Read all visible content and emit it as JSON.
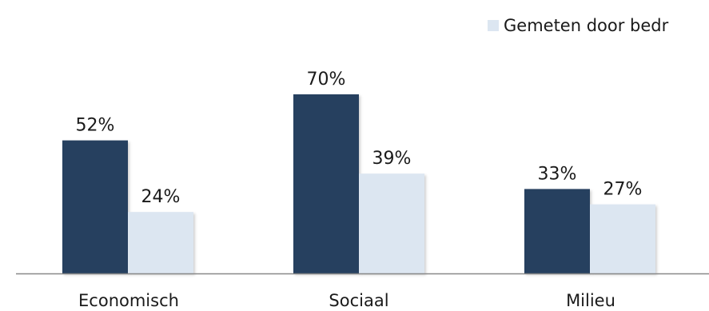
{
  "chart_data": {
    "type": "bar",
    "categories": [
      "Economisch",
      "Sociaal",
      "Milieu"
    ],
    "series": [
      {
        "values": [
          52,
          70,
          33
        ],
        "value_labels": [
          "52%",
          "70%",
          "33%"
        ],
        "color": "#253f5e"
      },
      {
        "name": "Gemeten door bedr",
        "values": [
          24,
          39,
          27
        ],
        "value_labels": [
          "24%",
          "39%",
          "27%"
        ],
        "color": "#dce6f1"
      }
    ],
    "ylim": [
      0,
      100
    ],
    "grid": false,
    "legend": "top-right",
    "axis_color": "#888888"
  }
}
